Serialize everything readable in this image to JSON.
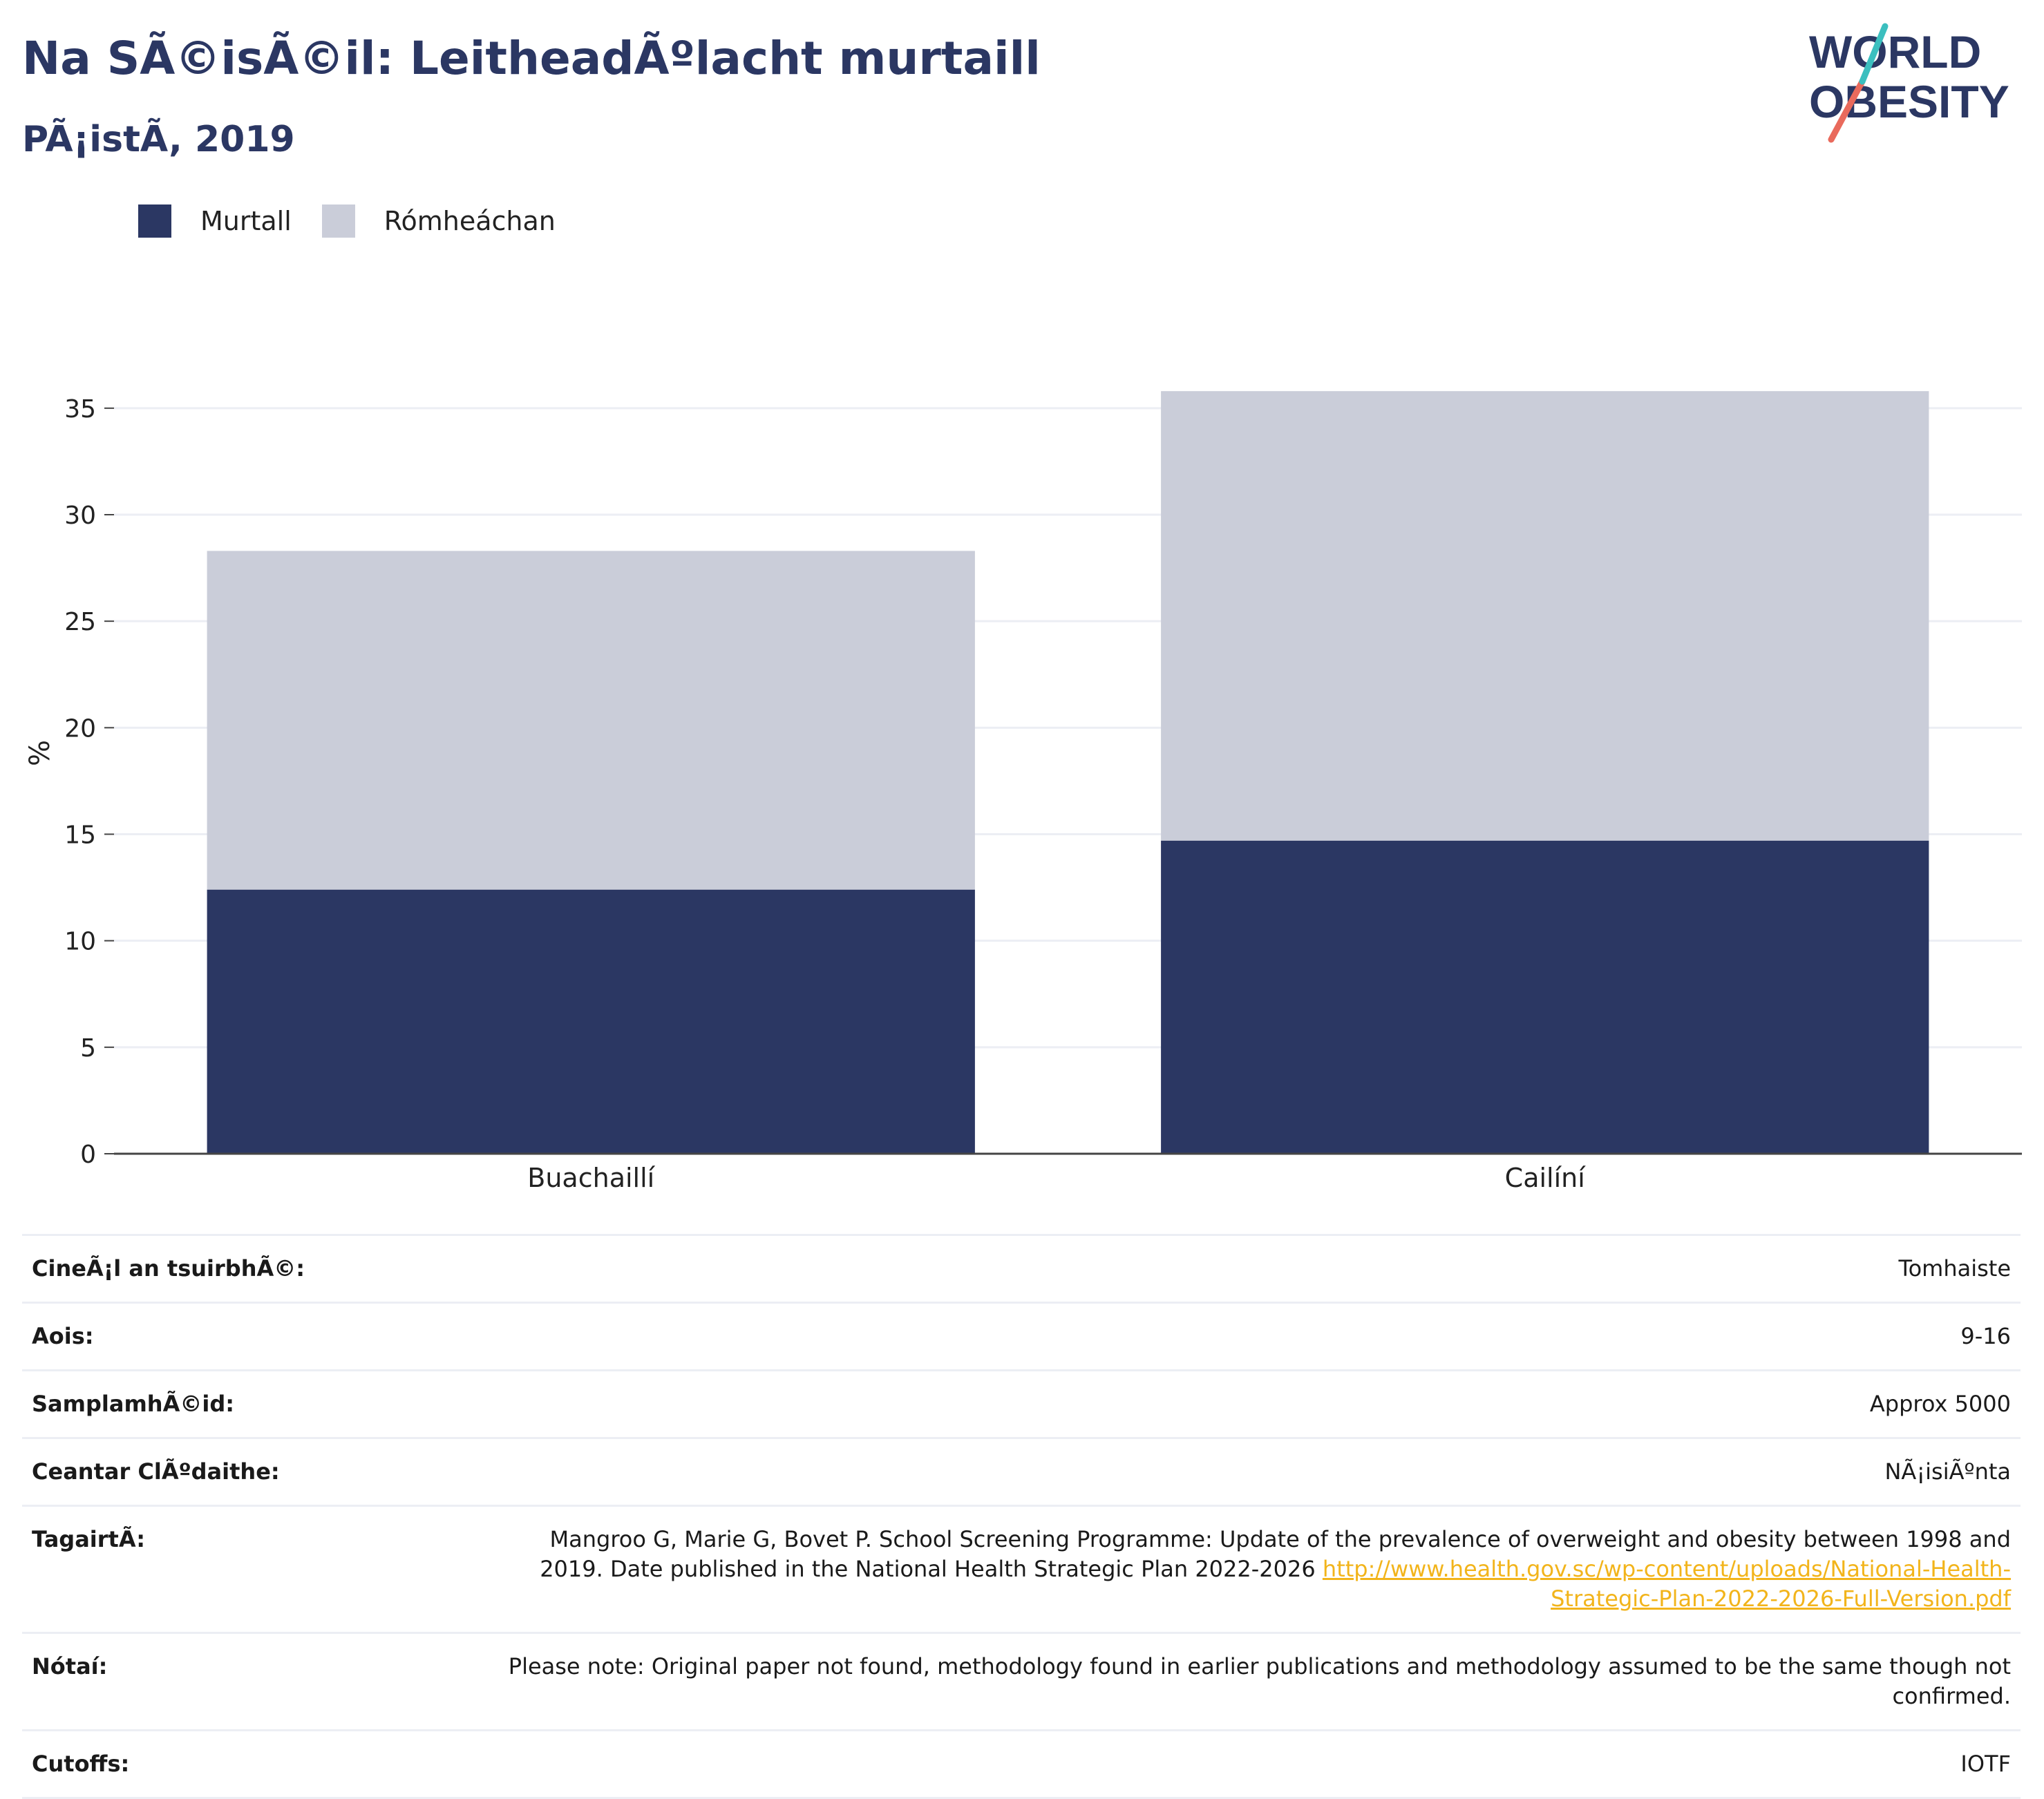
{
  "header": {
    "title": "Na SÃ©isÃ©il: LeitheadÃºlacht murtaill",
    "subtitle": "PÃ¡istÃ, 2019"
  },
  "logo": {
    "line1": "WORLD",
    "line2": "OBESITY"
  },
  "legend": {
    "items": [
      {
        "label": "Murtall",
        "color": "#2b3763"
      },
      {
        "label": "Rómheáchan",
        "color": "#cacdd9"
      }
    ]
  },
  "chart_data": {
    "type": "bar",
    "stacked": true,
    "categories": [
      "Buachaillí",
      "Cailíní"
    ],
    "series": [
      {
        "name": "Murtall",
        "values": [
          12.4,
          14.7
        ],
        "color": "#2b3763"
      },
      {
        "name": "Rómheáchan",
        "values": [
          15.9,
          21.1
        ],
        "color": "#cacdd9"
      }
    ],
    "ylabel": "%",
    "ylim": [
      0,
      36
    ],
    "yticks": [
      0,
      5,
      10,
      15,
      20,
      25,
      30,
      35
    ],
    "grid": true,
    "legend": "top-left"
  },
  "info": {
    "rows": [
      {
        "key": "CineÃ¡l an tsuirbhÃ©:",
        "value": "Tomhaiste"
      },
      {
        "key": "Aois:",
        "value": "9-16"
      },
      {
        "key": "SamplamhÃ©id:",
        "value": "Approx 5000"
      },
      {
        "key": "Ceantar ClÃºdaithe:",
        "value": "NÃ¡isiÃºnta"
      },
      {
        "key": "TagairtÃ:",
        "value": "Mangroo G, Marie G, Bovet P. School Screening Programme: Update of the prevalence of overweight and obesity between 1998 and 2019. Date published in the National Health Strategic Plan 2022-2026 ",
        "link": "http://www.health.gov.sc/wp-content/uploads/National-Health-Strategic-Plan-2022-2026-Full-Version.pdf"
      },
      {
        "key": "Nótaí:",
        "value": "Please note: Original paper not found, methodology found in earlier publications and methodology assumed to be the same though not confirmed."
      },
      {
        "key": "Cutoffs:",
        "value": "IOTF"
      }
    ]
  }
}
